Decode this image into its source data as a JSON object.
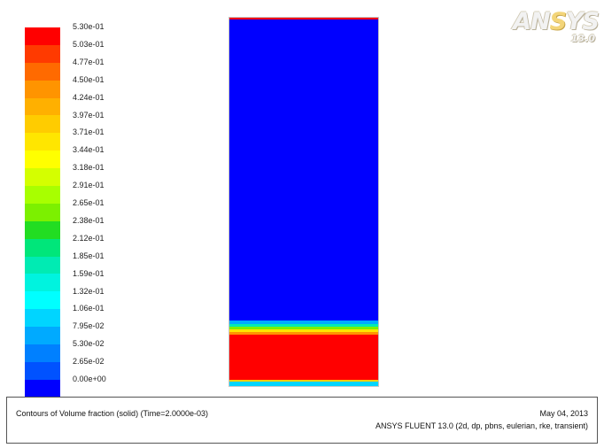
{
  "legend": {
    "labels": [
      "5.30e-01",
      "5.03e-01",
      "4.77e-01",
      "4.50e-01",
      "4.24e-01",
      "3.97e-01",
      "3.71e-01",
      "3.44e-01",
      "3.18e-01",
      "2.91e-01",
      "2.65e-01",
      "2.38e-01",
      "2.12e-01",
      "1.85e-01",
      "1.59e-01",
      "1.32e-01",
      "1.06e-01",
      "7.95e-02",
      "5.30e-02",
      "2.65e-02",
      "0.00e+00"
    ],
    "colors": [
      "#ff0000",
      "#ff3a00",
      "#ff6a00",
      "#ff9400",
      "#ffb000",
      "#ffcc00",
      "#ffe600",
      "#ffff00",
      "#d4ff00",
      "#a8ff00",
      "#7cf000",
      "#22dd22",
      "#00e67a",
      "#00ebb3",
      "#00f3df",
      "#00ffff",
      "#00d5ff",
      "#00aaff",
      "#0080ff",
      "#0052ff",
      "#0000ff"
    ]
  },
  "logo": {
    "brand_a": "AN",
    "brand_b": "S",
    "brand_c": "YS",
    "version": "13.0"
  },
  "footer": {
    "caption": "Contours of Volume fraction (solid)   (Time=2.0000e-03)",
    "date": "May 04, 2013",
    "solver": "ANSYS FLUENT 13.0 (2d, dp, pbns, eulerian, rke, transient)"
  },
  "domain": {
    "bands_from_bottom": [
      {
        "from": 0,
        "to": 0.011,
        "color": "#00d5ff"
      },
      {
        "from": 0.011,
        "to": 0.017,
        "color": "#ffcc00"
      },
      {
        "from": 0.017,
        "to": 0.14,
        "color": "#ff0000"
      },
      {
        "from": 0.14,
        "to": 0.147,
        "color": "#ff9400"
      },
      {
        "from": 0.147,
        "to": 0.154,
        "color": "#ffe600"
      },
      {
        "from": 0.154,
        "to": 0.161,
        "color": "#7cf000"
      },
      {
        "from": 0.161,
        "to": 0.168,
        "color": "#00ebb3"
      },
      {
        "from": 0.168,
        "to": 0.178,
        "color": "#00aaff"
      },
      {
        "from": 0.178,
        "to": 0.996,
        "color": "#0000ff"
      },
      {
        "from": 0.996,
        "to": 1.0,
        "color": "#ff0000"
      }
    ]
  }
}
